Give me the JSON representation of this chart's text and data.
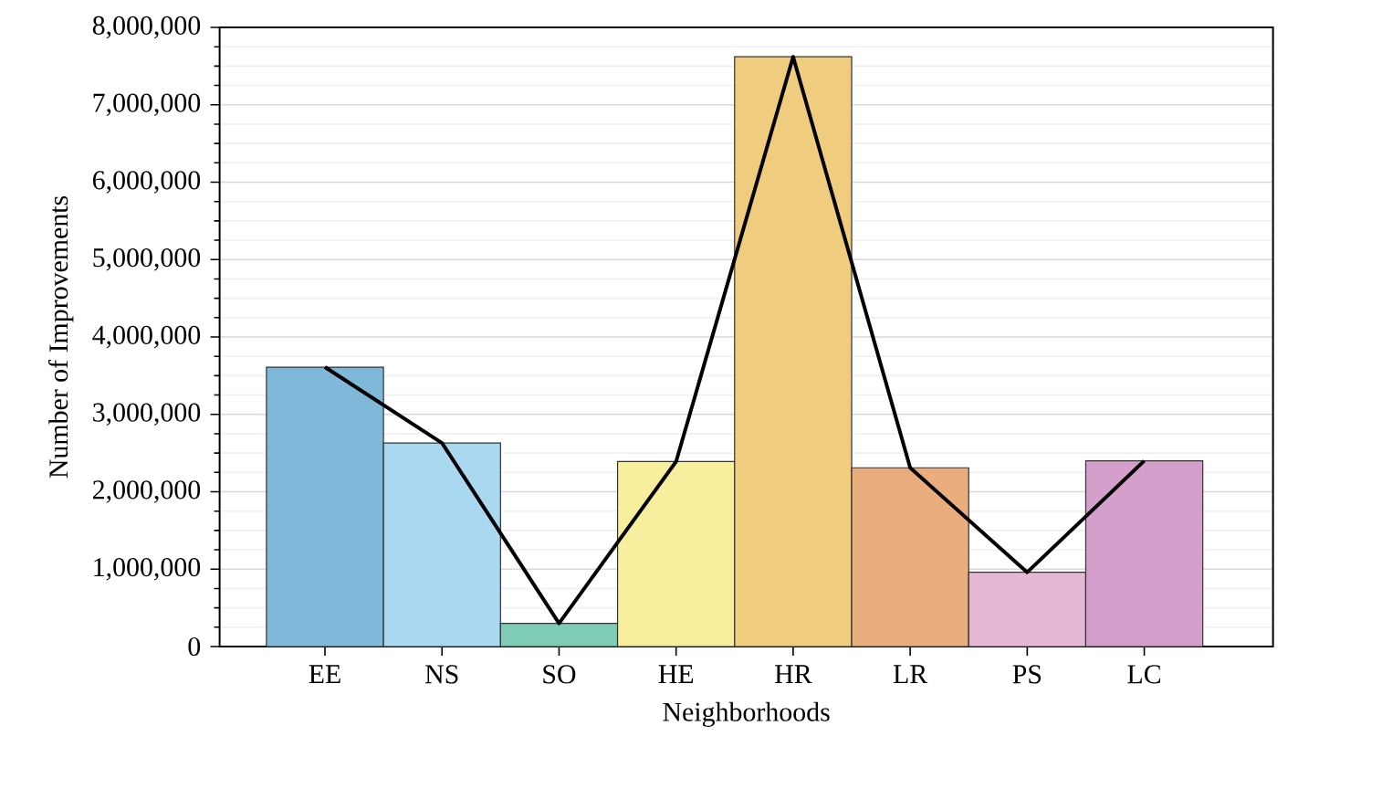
{
  "chart_data": {
    "type": "bar",
    "xlabel": "Neighborhoods",
    "ylabel": "Number of Improvements",
    "categories": [
      "EE",
      "NS",
      "SO",
      "HE",
      "HR",
      "LR",
      "PS",
      "LC"
    ],
    "series": [
      {
        "colors": [
          "#7fb8d9",
          "#a9d8f0",
          "#7fcdb6",
          "#f7ef9d",
          "#f0cd7e",
          "#e9ad7e",
          "#e5b9d3",
          "#d4a0cb"
        ],
        "values": [
          3610000,
          2630000,
          300000,
          2390000,
          7620000,
          2310000,
          960000,
          2400000
        ]
      },
      {
        "type": "line",
        "color": "#000000",
        "values": [
          3610000,
          2630000,
          300000,
          2390000,
          7620000,
          2310000,
          960000,
          2400000
        ]
      }
    ],
    "ylim": [
      0,
      8000000
    ],
    "yticks": [
      0,
      {
        "value": 1000000,
        "label": "1,000,000"
      },
      {
        "value": 2000000,
        "label": "2,000,000"
      },
      {
        "value": 3000000,
        "label": "3,000,000"
      },
      {
        "value": 4000000,
        "label": "4,000,000"
      },
      {
        "value": 5000000,
        "label": "5,000,000"
      },
      {
        "value": 6000000,
        "label": "6,000,000"
      },
      {
        "value": 7000000,
        "label": "7,000,000"
      },
      {
        "value": 8000000,
        "label": "8,000,000"
      }
    ],
    "grid": "y"
  }
}
